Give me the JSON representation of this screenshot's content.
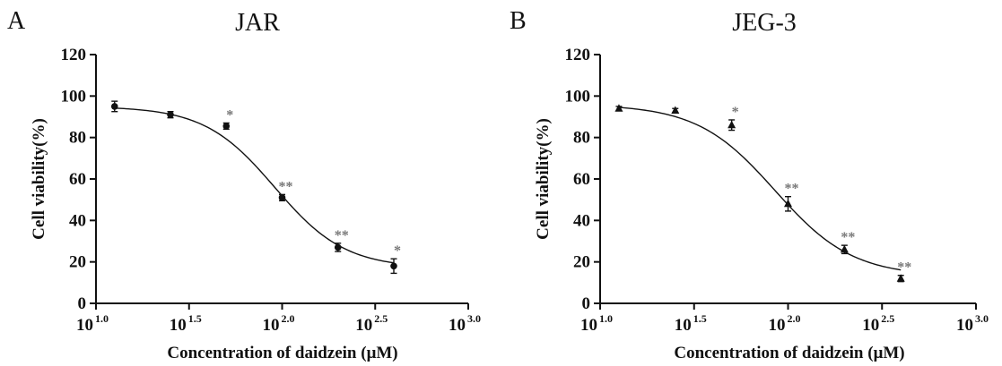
{
  "chart_data": [
    {
      "type": "scatter",
      "panel": "A",
      "title": "JAR",
      "xlabel": "Concentration of daidzein (μM)",
      "ylabel": "Cell viability(%)",
      "xscale": "log10",
      "xlim_log10": [
        1.0,
        3.0
      ],
      "ylim": [
        0,
        120
      ],
      "yticks": [
        0,
        20,
        40,
        60,
        80,
        100,
        120
      ],
      "xticks": [
        {
          "base": "10",
          "exp": "1.0",
          "value": 1.0
        },
        {
          "base": "10",
          "exp": "1.5",
          "value": 1.5
        },
        {
          "base": "10",
          "exp": "2.0",
          "value": 2.0
        },
        {
          "base": "10",
          "exp": "2.5",
          "value": 2.5
        },
        {
          "base": "10",
          "exp": "3.0",
          "value": 3.0
        }
      ],
      "marker": "circle",
      "points": [
        {
          "x_log10": 1.1,
          "y": 95,
          "err": 2.5,
          "sig": ""
        },
        {
          "x_log10": 1.4,
          "y": 91,
          "err": 1.5,
          "sig": ""
        },
        {
          "x_log10": 1.7,
          "y": 85.5,
          "err": 1.5,
          "sig": "*"
        },
        {
          "x_log10": 2.0,
          "y": 51,
          "err": 1.5,
          "sig": "**"
        },
        {
          "x_log10": 2.3,
          "y": 27,
          "err": 2,
          "sig": "**"
        },
        {
          "x_log10": 2.6,
          "y": 18,
          "err": 3.5,
          "sig": "*"
        }
      ],
      "fit": {
        "top": 95,
        "bottom": 17,
        "log_ic50": 1.96,
        "hill": 2.3
      }
    },
    {
      "type": "scatter",
      "panel": "B",
      "title": "JEG-3",
      "xlabel": "Concentration of daidzein (μM)",
      "ylabel": "Cell viability(%)",
      "xscale": "log10",
      "xlim_log10": [
        1.0,
        3.0
      ],
      "ylim": [
        0,
        120
      ],
      "yticks": [
        0,
        20,
        40,
        60,
        80,
        100,
        120
      ],
      "xticks": [
        {
          "base": "10",
          "exp": "1.0",
          "value": 1.0
        },
        {
          "base": "10",
          "exp": "1.5",
          "value": 1.5
        },
        {
          "base": "10",
          "exp": "2.0",
          "value": 2.0
        },
        {
          "base": "10",
          "exp": "2.5",
          "value": 2.5
        },
        {
          "base": "10",
          "exp": "3.0",
          "value": 3.0
        }
      ],
      "marker": "triangle",
      "points": [
        {
          "x_log10": 1.1,
          "y": 94,
          "err": 1,
          "sig": ""
        },
        {
          "x_log10": 1.4,
          "y": 93,
          "err": 1,
          "sig": ""
        },
        {
          "x_log10": 1.7,
          "y": 86,
          "err": 2.5,
          "sig": "*"
        },
        {
          "x_log10": 2.0,
          "y": 48,
          "err": 3.5,
          "sig": "**"
        },
        {
          "x_log10": 2.3,
          "y": 26,
          "err": 2,
          "sig": "**"
        },
        {
          "x_log10": 2.6,
          "y": 12,
          "err": 1.5,
          "sig": "**"
        }
      ],
      "fit": {
        "top": 96,
        "bottom": 13,
        "log_ic50": 1.93,
        "hill": 2.1
      }
    }
  ]
}
